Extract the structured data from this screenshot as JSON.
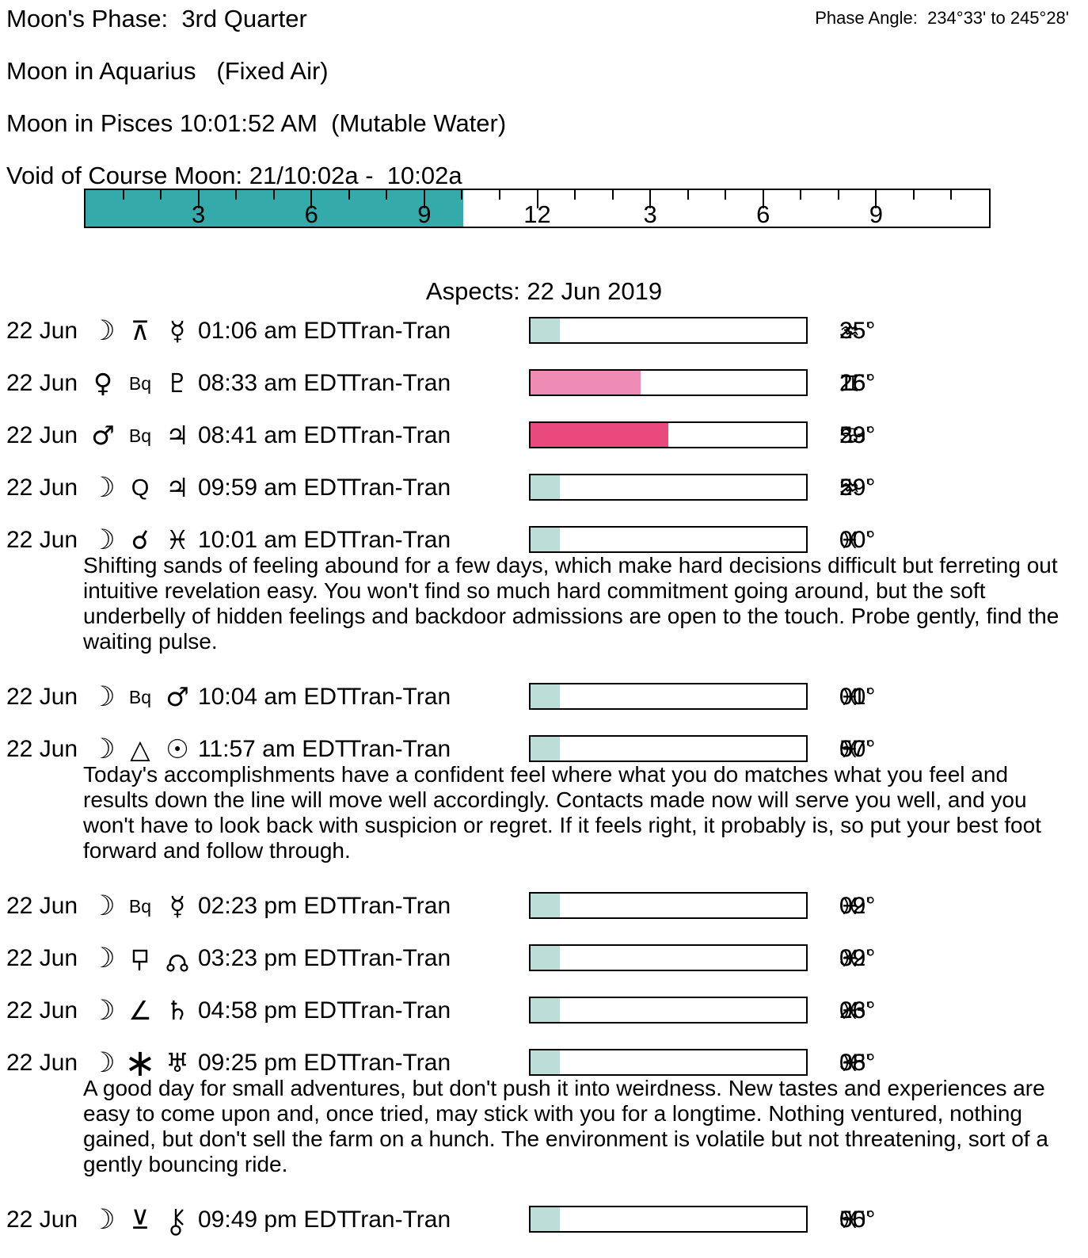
{
  "header": {
    "moons_phase": "Moon's Phase:  3rd Quarter",
    "phase_angle": "Phase Angle:  234°33' to 245°28'",
    "moon_sign_1": "Moon in Aquarius   (Fixed Air)",
    "moon_sign_2": "Moon in Pisces 10:01:52 AM  (Mutable Water)",
    "void_of_course": "Void of Course Moon: 21/10:02a -  10:02a"
  },
  "timeline": {
    "hours_total": 24,
    "void_fill_end_hour": 10.03,
    "fill_color": "#34AAAA",
    "hour_labels": [
      {
        "hour": 3,
        "label": "3"
      },
      {
        "hour": 6,
        "label": "6"
      },
      {
        "hour": 9,
        "label": "9"
      },
      {
        "hour": 12,
        "label": "12"
      },
      {
        "hour": 15,
        "label": "3"
      },
      {
        "hour": 18,
        "label": "6"
      },
      {
        "hour": 21,
        "label": "9"
      }
    ]
  },
  "aspects": {
    "title": "Aspects: 22 Jun 2019",
    "rows": [
      {
        "date": "22 Jun",
        "body1": "moon",
        "aspect": "quincunx",
        "body2": "mercury",
        "time": "01:06 am EDT",
        "type": "Tran-Tran",
        "bar_fill_pct": 10.5,
        "bar_fill_color": "#BDDED8",
        "position": {
          "deg": "25°",
          "sign": "aquarius",
          "min": "35'"
        },
        "note": null
      },
      {
        "date": "22 Jun",
        "body1": "venus",
        "aspect": "biquintile",
        "body2": "pluto",
        "time": "08:33 am EDT",
        "type": "Tran-Tran",
        "bar_fill_pct": 40,
        "bar_fill_color": "#EE8CB5",
        "position": {
          "deg": "16°",
          "sign": "gemini",
          "min": "25'"
        },
        "note": null
      },
      {
        "date": "22 Jun",
        "body1": "mars",
        "aspect": "biquintile",
        "body2": "jupiter",
        "time": "08:41 am EDT",
        "type": "Tran-Tran",
        "bar_fill_pct": 50,
        "bar_fill_color": "#E9497D",
        "position": {
          "deg": "23°",
          "sign": "cancer",
          "min": "59'"
        },
        "note": null
      },
      {
        "date": "22 Jun",
        "body1": "moon",
        "aspect": "quintile",
        "body2": "jupiter",
        "time": "09:59 am EDT",
        "type": "Tran-Tran",
        "bar_fill_pct": 10.5,
        "bar_fill_color": "#BDDED8",
        "position": {
          "deg": "29°",
          "sign": "aquarius",
          "min": "59'"
        },
        "note": null
      },
      {
        "date": "22 Jun",
        "body1": "moon",
        "aspect": "conjunction",
        "body2": "pisces-sign",
        "time": "10:01 am EDT",
        "type": "Tran-Tran",
        "bar_fill_pct": 10.5,
        "bar_fill_color": "#BDDED8",
        "position": {
          "deg": "00°",
          "sign": "pisces",
          "min": "00'"
        },
        "note": "Shifting sands of feeling abound for a few days, which make hard decisions difficult but ferreting out intuitive revelation easy. You won't find so much hard commitment going around, but the soft underbelly of hidden feelings and backdoor admissions are open to the touch. Probe gently, find the waiting pulse."
      },
      {
        "date": "22 Jun",
        "body1": "moon",
        "aspect": "biquintile",
        "body2": "mars",
        "time": "10:04 am EDT",
        "type": "Tran-Tran",
        "bar_fill_pct": 10.5,
        "bar_fill_color": "#BDDED8",
        "position": {
          "deg": "00°",
          "sign": "pisces",
          "min": "01'"
        },
        "note": null
      },
      {
        "date": "22 Jun",
        "body1": "moon",
        "aspect": "trine",
        "body2": "sun",
        "time": "11:57 am EDT",
        "type": "Tran-Tran",
        "bar_fill_pct": 10.5,
        "bar_fill_color": "#BDDED8",
        "position": {
          "deg": "00°",
          "sign": "pisces",
          "min": "57'"
        },
        "note": "Today's accomplishments have a confident feel where what you do matches what you feel and results down the line will move well accordingly. Contacts made now will serve you well, and you won't have to look back with suspicion or regret. If it feels right, it probably is, so put your best foot forward and follow through."
      },
      {
        "date": "22 Jun",
        "body1": "moon",
        "aspect": "biquintile",
        "body2": "mercury",
        "time": "02:23 pm EDT",
        "type": "Tran-Tran",
        "bar_fill_pct": 10.5,
        "bar_fill_color": "#BDDED8",
        "position": {
          "deg": "02°",
          "sign": "pisces",
          "min": "09'"
        },
        "note": null
      },
      {
        "date": "22 Jun",
        "body1": "moon",
        "aspect": "sesquiquadrate",
        "body2": "north-node",
        "time": "03:23 pm EDT",
        "type": "Tran-Tran",
        "bar_fill_pct": 10.5,
        "bar_fill_color": "#BDDED8",
        "position": {
          "deg": "02°",
          "sign": "pisces",
          "min": "39'"
        },
        "note": null
      },
      {
        "date": "22 Jun",
        "body1": "moon",
        "aspect": "semisquare",
        "body2": "saturn",
        "time": "04:58 pm EDT",
        "type": "Tran-Tran",
        "bar_fill_pct": 10.5,
        "bar_fill_color": "#BDDED8",
        "position": {
          "deg": "03°",
          "sign": "pisces",
          "min": "26'"
        },
        "note": null
      },
      {
        "date": "22 Jun",
        "body1": "moon",
        "aspect": "sextile",
        "body2": "uranus",
        "time": "09:25 pm EDT",
        "type": "Tran-Tran",
        "bar_fill_pct": 10.5,
        "bar_fill_color": "#BDDED8",
        "position": {
          "deg": "05°",
          "sign": "pisces",
          "min": "38'"
        },
        "note": "A good day for small adventures, but don't push it into weirdness. New tastes and experiences are easy to come upon and, once tried, may stick with you for a longtime. Nothing ventured, nothing gained, but don't sell the farm on a hunch. The environment is volatile but not threatening, sort of a gently bouncing ride."
      },
      {
        "date": "22 Jun",
        "body1": "moon",
        "aspect": "semisextile",
        "body2": "chiron",
        "time": "09:49 pm EDT",
        "type": "Tran-Tran",
        "bar_fill_pct": 10.5,
        "bar_fill_color": "#BDDED8",
        "position": {
          "deg": "05°",
          "sign": "pisces",
          "min": "50'"
        },
        "note": null
      }
    ]
  },
  "colors": {
    "void_fill": "#34AAAA",
    "orb_teal": "#BDDED8",
    "orb_pink": "#EE8CB5",
    "orb_magenta": "#E9497D",
    "text": "#000000",
    "background": "#FFFFFF"
  }
}
